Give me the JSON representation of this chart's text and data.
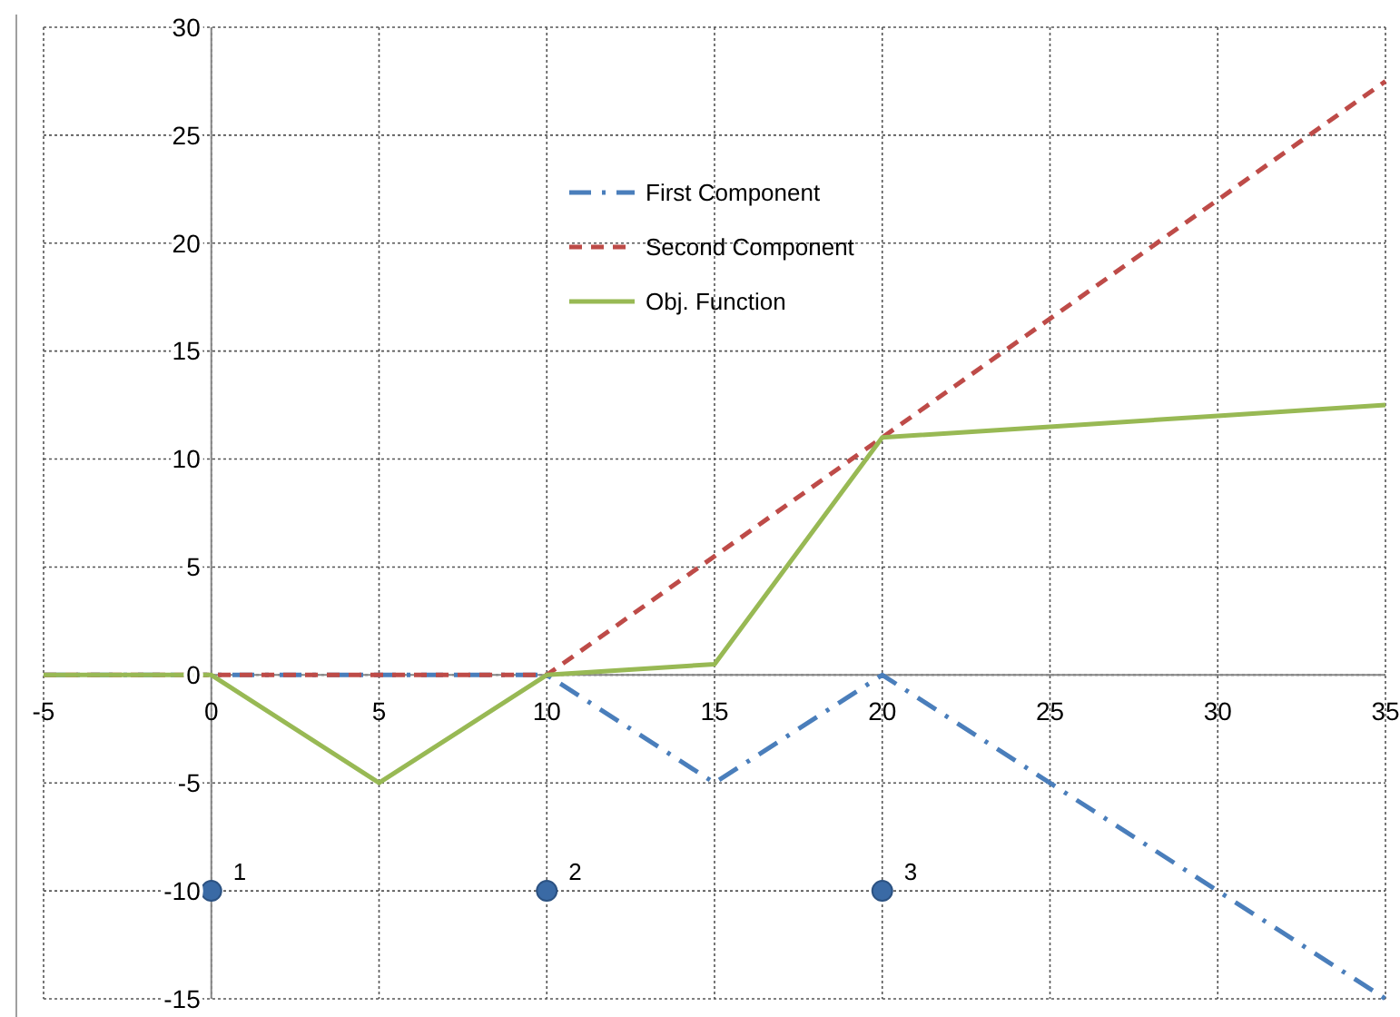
{
  "chart_data": {
    "type": "line",
    "xlim": [
      -5,
      35
    ],
    "ylim": [
      -15,
      30
    ],
    "xticks": [
      -5,
      0,
      5,
      10,
      15,
      20,
      25,
      30,
      35
    ],
    "yticks": [
      -15,
      -10,
      -5,
      0,
      5,
      10,
      15,
      20,
      25,
      30
    ],
    "grid": true,
    "legend": "top",
    "marker": "none",
    "series": [
      {
        "name": "First Component",
        "color": "#4a7ebb",
        "line_style": "dashdot",
        "x": [
          -5,
          0,
          10,
          15,
          20,
          35
        ],
        "values": [
          0,
          0,
          0,
          -5,
          0,
          -15
        ]
      },
      {
        "name": "Second Component",
        "color": "#be4b48",
        "line_style": "dashed",
        "x": [
          -5,
          0,
          10,
          35
        ],
        "values": [
          0,
          0,
          0,
          27.5
        ]
      },
      {
        "name": "Obj. Function",
        "color": "#98b954",
        "line_style": "solid",
        "x": [
          -5,
          0,
          5,
          10,
          15,
          20,
          25,
          30,
          35
        ],
        "values": [
          0,
          0,
          -5,
          0,
          0.5,
          11,
          11.5,
          12,
          12.5
        ]
      },
      {
        "type": "scatter",
        "color": "#3a6aa5",
        "marker": "circle",
        "x": [
          0,
          10,
          20
        ],
        "values": [
          -10,
          -10,
          -10
        ]
      }
    ],
    "annotations": [
      {
        "text": "1",
        "x": 0,
        "y": -10
      },
      {
        "text": "2",
        "x": 10,
        "y": -10
      },
      {
        "text": "3",
        "x": 20,
        "y": -10
      }
    ]
  }
}
